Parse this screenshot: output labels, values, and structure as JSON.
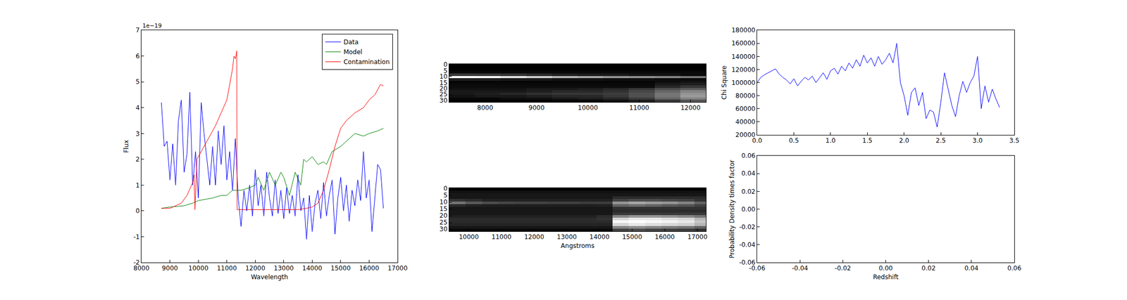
{
  "chart_data": [
    {
      "type": "line",
      "xlabel": "Wavelength",
      "ylabel": "Flux",
      "xlim": [
        8000,
        17000
      ],
      "ylim": [
        -2,
        7
      ],
      "xticks": [
        8000,
        9000,
        10000,
        11000,
        12000,
        13000,
        14000,
        15000,
        16000,
        17000
      ],
      "yticks": [
        -2,
        -1,
        0,
        1,
        2,
        3,
        4,
        5,
        6,
        7
      ],
      "legend": "upper right",
      "annotations": [
        {
          "text": "1e−19"
        }
      ],
      "series": [
        {
          "name": "Data",
          "color": "#0000ff",
          "x": [
            8700,
            8800,
            8900,
            9000,
            9100,
            9200,
            9300,
            9400,
            9500,
            9600,
            9700,
            9800,
            9900,
            10000,
            10100,
            10200,
            10300,
            10400,
            10500,
            10600,
            10700,
            10800,
            10900,
            11000,
            11100,
            11200,
            11300,
            11400,
            11500,
            11600,
            11700,
            11800,
            11900,
            12000,
            12100,
            12200,
            12300,
            12400,
            12500,
            12600,
            12700,
            12800,
            12900,
            13000,
            13100,
            13200,
            13300,
            13400,
            13500,
            13600,
            13700,
            13800,
            13900,
            14000,
            14100,
            14200,
            14300,
            14400,
            14500,
            14600,
            14700,
            14800,
            14900,
            15000,
            15100,
            15200,
            15300,
            15400,
            15500,
            15600,
            15700,
            15800,
            15900,
            16000,
            16100,
            16200,
            16300,
            16400,
            16500
          ],
          "values": [
            4.2,
            2.5,
            2.7,
            1.2,
            2.6,
            1.0,
            3.5,
            4.3,
            1.5,
            2.2,
            4.6,
            1.0,
            2.3,
            0.5,
            4.2,
            3.0,
            2.0,
            1.0,
            2.5,
            1.0,
            3.1,
            1.8,
            3.3,
            1.2,
            2.3,
            0.8,
            2.8,
            0.5,
            -0.6,
            0.8,
            0.0,
            1.0,
            -0.2,
            1.6,
            0.2,
            1.0,
            -0.2,
            1.5,
            0.5,
            -0.2,
            1.2,
            -0.1,
            0.8,
            -0.3,
            0.9,
            -0.1,
            0.6,
            -0.2,
            1.4,
            0.0,
            0.5,
            -1.1,
            0.6,
            -0.8,
            0.3,
            0.8,
            -0.3,
            1.1,
            -0.2,
            0.6,
            1.2,
            -0.9,
            0.5,
            1.3,
            0.0,
            1.0,
            -0.4,
            0.8,
            0.2,
            1.2,
            0.4,
            2.3,
            0.5,
            1.2,
            -0.8,
            0.5,
            1.8,
            1.6,
            0.1
          ]
        },
        {
          "name": "Model",
          "color": "#008000",
          "x": [
            8700,
            9000,
            9500,
            9800,
            10000,
            10500,
            10800,
            11000,
            11200,
            11500,
            11800,
            12000,
            12100,
            12300,
            12500,
            12700,
            12900,
            13000,
            13200,
            13400,
            13600,
            13700,
            13800,
            14000,
            14200,
            14400,
            14500,
            14700,
            15000,
            15300,
            15500,
            15800,
            16000,
            16300,
            16500
          ],
          "values": [
            0.1,
            0.15,
            0.2,
            0.3,
            0.4,
            0.5,
            0.6,
            0.6,
            0.8,
            0.8,
            0.9,
            1.0,
            1.3,
            0.8,
            1.5,
            1.0,
            1.5,
            1.3,
            0.6,
            1.5,
            1.0,
            2.0,
            1.9,
            2.1,
            1.8,
            1.9,
            1.8,
            2.3,
            2.5,
            2.8,
            3.0,
            2.9,
            3.0,
            3.1,
            3.2
          ]
        },
        {
          "name": "Contamination",
          "color": "#ff0000",
          "x": [
            8700,
            9000,
            9200,
            9400,
            9600,
            9800,
            9850,
            9880,
            9950,
            10000,
            10200,
            10400,
            10600,
            10800,
            11000,
            11100,
            11200,
            11250,
            11300,
            11350,
            11360,
            11400,
            12000,
            12500,
            13000,
            13500,
            13800,
            14000,
            14200,
            14400,
            14600,
            14800,
            15000,
            15200,
            15500,
            15800,
            16000,
            16200,
            16400,
            16500
          ],
          "values": [
            0.1,
            0.1,
            0.2,
            0.3,
            0.6,
            1.1,
            1.4,
            0.05,
            2.0,
            2.1,
            2.5,
            2.9,
            3.3,
            3.8,
            4.3,
            4.9,
            5.5,
            6.0,
            5.9,
            6.2,
            0.05,
            0.05,
            0.05,
            0.05,
            0.05,
            0.05,
            0.1,
            0.15,
            0.3,
            0.8,
            1.6,
            2.5,
            3.2,
            3.5,
            3.8,
            4.0,
            4.3,
            4.5,
            4.9,
            4.85
          ]
        }
      ]
    },
    {
      "type": "heatmap",
      "xlim": [
        7300,
        12300
      ],
      "ylim": [
        31.5,
        -0.5
      ],
      "xticks": [
        8000,
        9000,
        10000,
        11000,
        12000
      ],
      "yticks": [
        0,
        5,
        10,
        15,
        20,
        25,
        30
      ],
      "x": [
        7550,
        8050,
        8550,
        9050,
        9550,
        10050,
        10550,
        11050,
        11550,
        12050
      ],
      "y": [
        0.5,
        2.5,
        4.5,
        6.5,
        8.5,
        10.5,
        12.5,
        14.5,
        16.5,
        18.5,
        20.5,
        22.5,
        24.5,
        26.5,
        28.5,
        30.5
      ],
      "z": [
        [
          0.12,
          0.12,
          0.12,
          0.12,
          0.12,
          0.12,
          0.12,
          0.12,
          0.12,
          0.12
        ],
        [
          0.12,
          0.12,
          0.12,
          0.12,
          0.12,
          0.12,
          0.12,
          0.12,
          0.12,
          0.12
        ],
        [
          0.13,
          0.13,
          0.13,
          0.13,
          0.13,
          0.13,
          0.13,
          0.13,
          0.13,
          0.13
        ],
        [
          0.15,
          0.15,
          0.15,
          0.15,
          0.15,
          0.15,
          0.15,
          0.15,
          0.15,
          0.15
        ],
        [
          0.3,
          0.3,
          0.28,
          0.25,
          0.22,
          0.2,
          0.2,
          0.18,
          0.18,
          0.15
        ],
        [
          0.95,
          0.92,
          0.85,
          0.78,
          0.7,
          0.65,
          0.6,
          0.58,
          0.55,
          0.5
        ],
        [
          0.22,
          0.22,
          0.2,
          0.2,
          0.18,
          0.18,
          0.17,
          0.17,
          0.16,
          0.15
        ],
        [
          0.14,
          0.14,
          0.14,
          0.14,
          0.14,
          0.14,
          0.14,
          0.14,
          0.16,
          0.18
        ],
        [
          0.15,
          0.15,
          0.15,
          0.15,
          0.15,
          0.15,
          0.15,
          0.15,
          0.2,
          0.22
        ],
        [
          0.16,
          0.16,
          0.16,
          0.16,
          0.16,
          0.16,
          0.16,
          0.16,
          0.25,
          0.3
        ],
        [
          0.18,
          0.18,
          0.18,
          0.2,
          0.2,
          0.22,
          0.25,
          0.3,
          0.38,
          0.42
        ],
        [
          0.2,
          0.2,
          0.2,
          0.22,
          0.25,
          0.25,
          0.28,
          0.35,
          0.45,
          0.55
        ],
        [
          0.2,
          0.22,
          0.25,
          0.28,
          0.3,
          0.3,
          0.32,
          0.38,
          0.5,
          0.6
        ],
        [
          0.18,
          0.2,
          0.2,
          0.22,
          0.25,
          0.25,
          0.3,
          0.38,
          0.5,
          0.62
        ],
        [
          0.15,
          0.15,
          0.17,
          0.18,
          0.2,
          0.22,
          0.25,
          0.32,
          0.45,
          0.55
        ],
        [
          0.12,
          0.12,
          0.12,
          0.13,
          0.14,
          0.15,
          0.18,
          0.22,
          0.3,
          0.4
        ]
      ]
    },
    {
      "type": "heatmap",
      "xlabel": "Angstroms",
      "xlim": [
        9400,
        17260
      ],
      "ylim": [
        31.5,
        -0.5
      ],
      "xticks": [
        10000,
        11000,
        12000,
        13000,
        14000,
        15000,
        16000,
        17000
      ],
      "yticks": [
        0,
        5,
        10,
        15,
        20,
        25,
        30
      ],
      "x": [
        9650,
        10150,
        10650,
        11150,
        11650,
        12150,
        12650,
        13150,
        13650,
        14150,
        14650,
        15150,
        15650,
        16150,
        16650,
        17150
      ],
      "y": [
        0.5,
        2.5,
        4.5,
        6.5,
        8.5,
        10.5,
        12.5,
        14.5,
        16.5,
        18.5,
        20.5,
        22.5,
        24.5,
        26.5,
        28.5,
        30.5
      ],
      "z": [
        [
          0.15,
          0.15,
          0.15,
          0.15,
          0.15,
          0.15,
          0.15,
          0.15,
          0.15,
          0.15,
          0.15,
          0.15,
          0.15,
          0.15,
          0.15,
          0.15
        ],
        [
          0.2,
          0.2,
          0.2,
          0.2,
          0.2,
          0.2,
          0.2,
          0.2,
          0.2,
          0.2,
          0.2,
          0.2,
          0.2,
          0.2,
          0.2,
          0.2
        ],
        [
          0.22,
          0.22,
          0.22,
          0.22,
          0.22,
          0.22,
          0.22,
          0.22,
          0.22,
          0.22,
          0.22,
          0.22,
          0.22,
          0.22,
          0.22,
          0.22
        ],
        [
          0.22,
          0.22,
          0.22,
          0.22,
          0.22,
          0.22,
          0.22,
          0.22,
          0.22,
          0.22,
          0.28,
          0.28,
          0.28,
          0.28,
          0.28,
          0.28
        ],
        [
          0.3,
          0.28,
          0.25,
          0.25,
          0.25,
          0.25,
          0.25,
          0.25,
          0.25,
          0.25,
          0.35,
          0.38,
          0.38,
          0.36,
          0.35,
          0.3
        ],
        [
          0.5,
          0.42,
          0.38,
          0.36,
          0.35,
          0.35,
          0.34,
          0.34,
          0.33,
          0.33,
          0.6,
          0.65,
          0.62,
          0.6,
          0.55,
          0.45
        ],
        [
          0.28,
          0.25,
          0.24,
          0.24,
          0.24,
          0.24,
          0.24,
          0.24,
          0.24,
          0.25,
          0.45,
          0.48,
          0.45,
          0.42,
          0.4,
          0.35
        ],
        [
          0.22,
          0.22,
          0.22,
          0.22,
          0.22,
          0.22,
          0.22,
          0.22,
          0.22,
          0.22,
          0.3,
          0.3,
          0.3,
          0.3,
          0.3,
          0.3
        ],
        [
          0.22,
          0.22,
          0.22,
          0.22,
          0.22,
          0.22,
          0.22,
          0.22,
          0.22,
          0.22,
          0.28,
          0.28,
          0.28,
          0.28,
          0.28,
          0.28
        ],
        [
          0.22,
          0.22,
          0.22,
          0.22,
          0.22,
          0.22,
          0.22,
          0.22,
          0.22,
          0.22,
          0.32,
          0.32,
          0.32,
          0.32,
          0.32,
          0.32
        ],
        [
          0.25,
          0.25,
          0.25,
          0.25,
          0.25,
          0.25,
          0.25,
          0.25,
          0.25,
          0.28,
          0.55,
          0.6,
          0.6,
          0.58,
          0.55,
          0.5
        ],
        [
          0.28,
          0.28,
          0.28,
          0.28,
          0.28,
          0.28,
          0.28,
          0.28,
          0.28,
          0.3,
          0.8,
          0.85,
          0.85,
          0.82,
          0.8,
          0.7
        ],
        [
          0.28,
          0.28,
          0.28,
          0.28,
          0.28,
          0.28,
          0.28,
          0.28,
          0.28,
          0.28,
          0.9,
          0.92,
          0.9,
          0.88,
          0.85,
          0.75
        ],
        [
          0.26,
          0.26,
          0.26,
          0.26,
          0.26,
          0.26,
          0.26,
          0.26,
          0.26,
          0.26,
          0.8,
          0.85,
          0.82,
          0.8,
          0.78,
          0.7
        ],
        [
          0.22,
          0.22,
          0.22,
          0.22,
          0.22,
          0.22,
          0.22,
          0.22,
          0.22,
          0.22,
          0.55,
          0.58,
          0.55,
          0.52,
          0.5,
          0.45
        ],
        [
          0.18,
          0.18,
          0.18,
          0.18,
          0.18,
          0.18,
          0.18,
          0.18,
          0.18,
          0.18,
          0.35,
          0.38,
          0.35,
          0.34,
          0.33,
          0.3
        ]
      ]
    },
    {
      "type": "line",
      "ylabel": "Chi Square",
      "xlim": [
        0,
        3.5
      ],
      "ylim": [
        20000,
        180000
      ],
      "xticks": [
        {
          "value": 0,
          "label": "0.0"
        },
        0.5,
        {
          "value": 1,
          "label": "1.0"
        },
        1.5,
        {
          "value": 2,
          "label": "2.0"
        },
        2.5,
        {
          "value": 3,
          "label": "3.0"
        },
        3.5
      ],
      "yticks": [
        20000,
        40000,
        60000,
        80000,
        100000,
        120000,
        140000,
        160000,
        180000
      ],
      "series": [
        {
          "color": "#0000ff",
          "x": [
            0,
            0.05,
            0.1,
            0.15,
            0.2,
            0.25,
            0.3,
            0.35,
            0.4,
            0.45,
            0.5,
            0.55,
            0.6,
            0.65,
            0.7,
            0.75,
            0.8,
            0.85,
            0.9,
            0.95,
            1.0,
            1.05,
            1.1,
            1.15,
            1.2,
            1.25,
            1.3,
            1.35,
            1.4,
            1.45,
            1.5,
            1.55,
            1.6,
            1.65,
            1.7,
            1.75,
            1.8,
            1.85,
            1.9,
            1.95,
            2.0,
            2.05,
            2.1,
            2.15,
            2.2,
            2.25,
            2.3,
            2.35,
            2.4,
            2.45,
            2.5,
            2.55,
            2.6,
            2.65,
            2.7,
            2.75,
            2.8,
            2.85,
            2.9,
            2.95,
            3.0,
            3.05,
            3.1,
            3.15,
            3.2,
            3.25,
            3.3
          ],
          "values": [
            100000,
            108000,
            112000,
            115000,
            118000,
            121000,
            113000,
            108000,
            104000,
            98000,
            106000,
            95000,
            102000,
            108000,
            104000,
            110000,
            100000,
            108000,
            115000,
            105000,
            118000,
            122000,
            113000,
            125000,
            118000,
            130000,
            122000,
            135000,
            125000,
            142000,
            130000,
            138000,
            125000,
            140000,
            128000,
            135000,
            145000,
            130000,
            160000,
            100000,
            80000,
            50000,
            85000,
            92000,
            65000,
            85000,
            45000,
            58000,
            55000,
            32000,
            70000,
            115000,
            90000,
            65000,
            48000,
            80000,
            102000,
            85000,
            100000,
            110000,
            140000,
            60000,
            95000,
            70000,
            90000,
            75000,
            62000
          ]
        }
      ]
    },
    {
      "type": "line",
      "xlabel": "Redshift",
      "ylabel": "Probability Density times factor",
      "xlim": [
        -0.06,
        0.06
      ],
      "ylim": [
        -0.06,
        0.06
      ],
      "xticks": [
        -0.06,
        -0.04,
        -0.02,
        {
          "value": 0,
          "label": "0.00"
        },
        0.02,
        0.04,
        0.06
      ],
      "yticks": [
        -0.06,
        -0.04,
        -0.02,
        {
          "value": 0,
          "label": "0.00"
        },
        0.02,
        0.04,
        0.06
      ],
      "series": [
        {
          "color": "#0000ff",
          "x": [],
          "values": []
        }
      ]
    }
  ]
}
